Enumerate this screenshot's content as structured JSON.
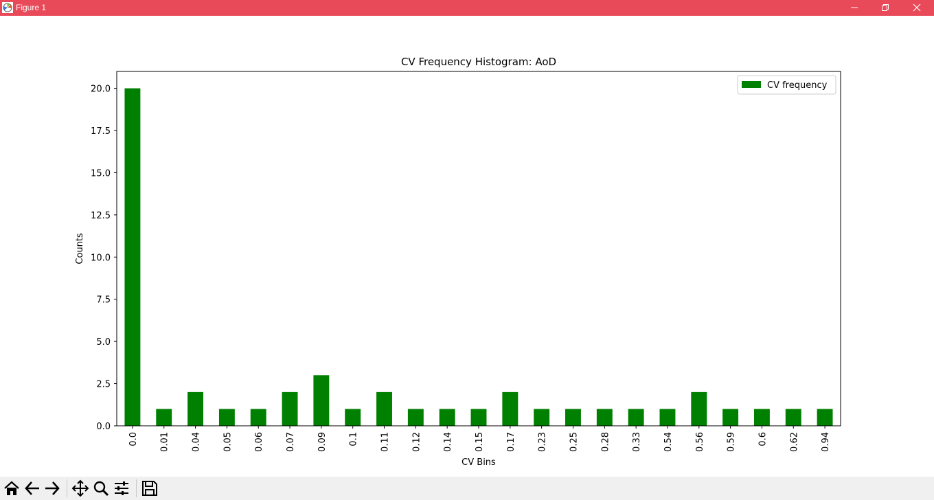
{
  "window": {
    "title": "Figure 1"
  },
  "colors": {
    "titlebar": "#e84a5a",
    "bar": "#008000",
    "toolbar": "#f0f0f0"
  },
  "toolbar": {
    "icons": [
      "home-icon",
      "back-icon",
      "forward-icon",
      "pan-icon",
      "zoom-icon",
      "configure-subplots-icon",
      "save-icon"
    ]
  },
  "chart_data": {
    "type": "bar",
    "title": "CV Frequency Histogram: AoD",
    "xlabel": "CV Bins",
    "ylabel": "Counts",
    "categories": [
      "0.0",
      "0.01",
      "0.04",
      "0.05",
      "0.06",
      "0.07",
      "0.09",
      "0.1",
      "0.11",
      "0.12",
      "0.14",
      "0.15",
      "0.17",
      "0.23",
      "0.25",
      "0.28",
      "0.33",
      "0.54",
      "0.56",
      "0.59",
      "0.6",
      "0.62",
      "0.94"
    ],
    "series": [
      {
        "name": "CV frequency",
        "color": "#008000",
        "values": [
          20,
          1,
          2,
          1,
          1,
          2,
          3,
          1,
          2,
          1,
          1,
          1,
          2,
          1,
          1,
          1,
          1,
          1,
          2,
          1,
          1,
          1,
          1
        ]
      }
    ],
    "ylim": [
      0,
      21
    ],
    "yticks": [
      "0.0",
      "2.5",
      "5.0",
      "7.5",
      "10.0",
      "12.5",
      "15.0",
      "17.5",
      "20.0"
    ],
    "legend": "top-right",
    "grid": false
  }
}
